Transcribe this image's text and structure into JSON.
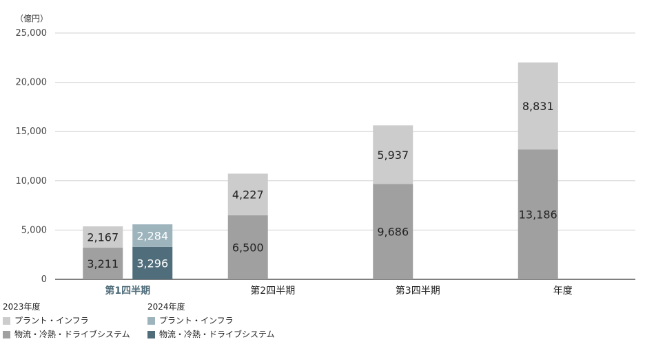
{
  "unit_label": "（億円）",
  "chart_data": {
    "type": "bar",
    "stacked": true,
    "categories": [
      "第1四半期",
      "第2四半期",
      "第3四半期",
      "年度"
    ],
    "highlight_category": "第1四半期",
    "ylim": [
      0,
      25000
    ],
    "yticks": [
      0,
      5000,
      10000,
      15000,
      20000,
      25000
    ],
    "ytick_labels": [
      "0",
      "5,000",
      "10,000",
      "15,000",
      "20,000",
      "25,000"
    ],
    "grid": true,
    "groups": [
      {
        "name": "2023年度",
        "series": [
          {
            "name": "物流・冷熱・ドライブシステム",
            "color": "#a0a0a0",
            "label_color": "#222222",
            "values": [
              3211,
              6500,
              9686,
              13186
            ],
            "labels": [
              "3,211",
              "6,500",
              "9,686",
              "13,186"
            ]
          },
          {
            "name": "プラント・インフラ",
            "color": "#cccccc",
            "label_color": "#222222",
            "values": [
              2167,
              4227,
              5937,
              8831
            ],
            "labels": [
              "2,167",
              "4,227",
              "5,937",
              "8,831"
            ]
          }
        ]
      },
      {
        "name": "2024年度",
        "series": [
          {
            "name": "物流・冷熱・ドライブシステム",
            "color": "#4f6d7a",
            "label_color": "#ffffff",
            "values": [
              3296,
              null,
              null,
              null
            ],
            "labels": [
              "3,296",
              "",
              "",
              ""
            ]
          },
          {
            "name": "プラント・インフラ",
            "color": "#9db4bd",
            "label_color": "#ffffff",
            "values": [
              2284,
              null,
              null,
              null
            ],
            "labels": [
              "2,284",
              "",
              "",
              ""
            ]
          }
        ]
      }
    ]
  },
  "legend": {
    "group_2023": {
      "title": "2023年度",
      "items": [
        {
          "label": "プラント・インフラ",
          "color": "#cccccc"
        },
        {
          "label": "物流・冷熱・ドライブシステム",
          "color": "#a0a0a0"
        }
      ]
    },
    "group_2024": {
      "title": "2024年度",
      "items": [
        {
          "label": "プラント・インフラ",
          "color": "#9db4bd"
        },
        {
          "label": "物流・冷熱・ドライブシステム",
          "color": "#4f6d7a"
        }
      ]
    }
  }
}
